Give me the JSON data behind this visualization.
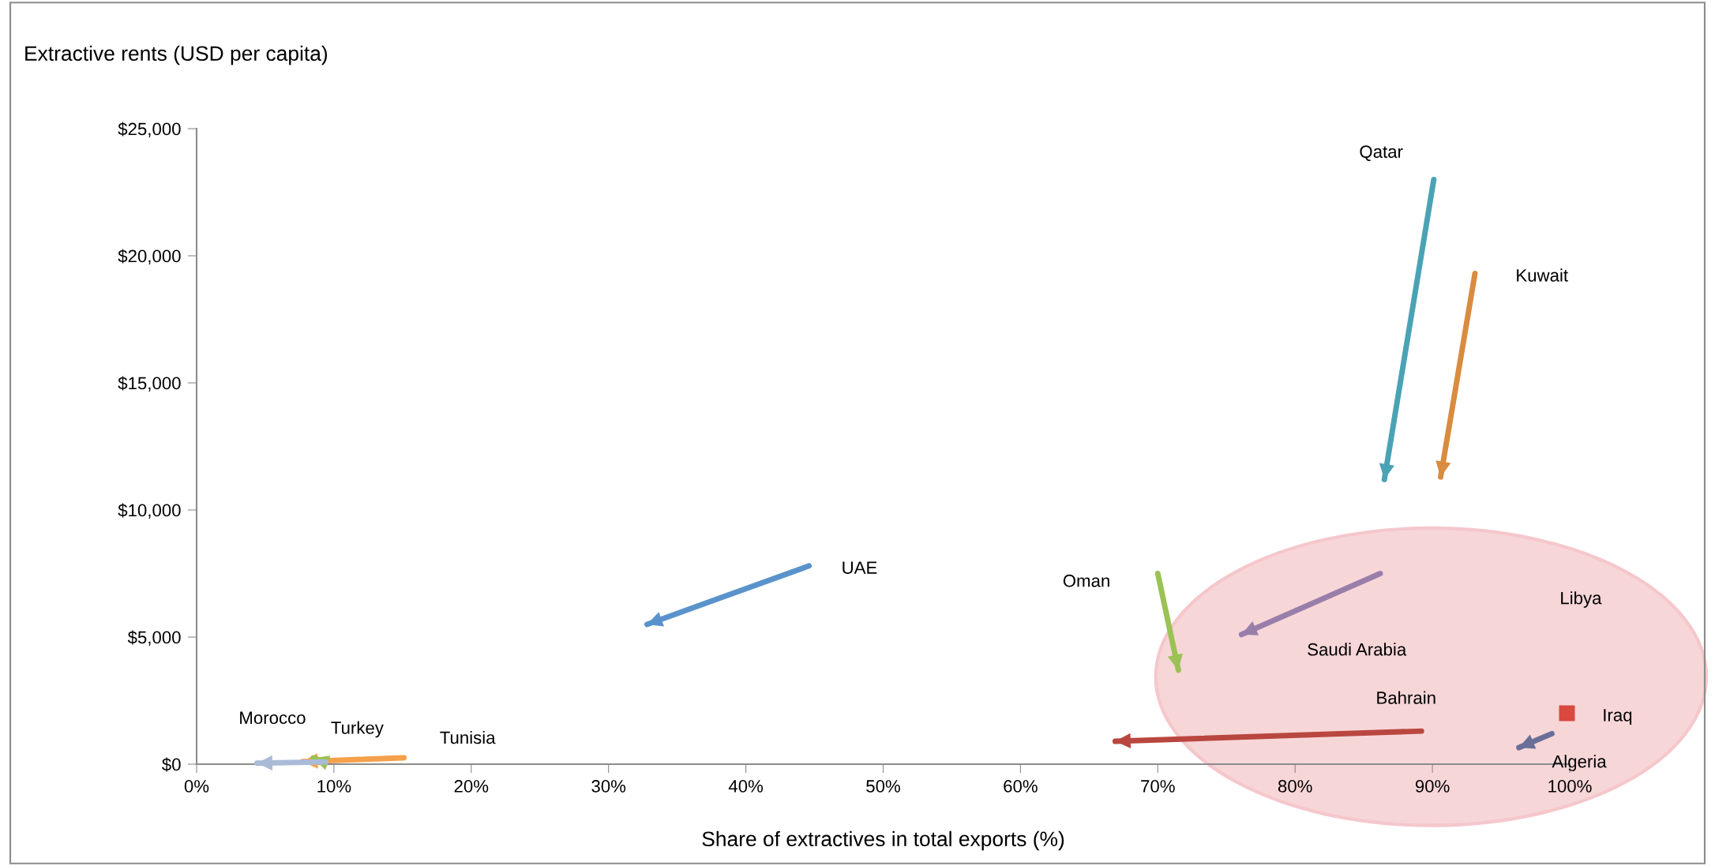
{
  "chart_data": {
    "type": "line",
    "xlabel": "Share of extractives in total exports (%)",
    "ylabel": "Extractive rents (USD per capita)",
    "xlim": [
      0,
      100
    ],
    "xticks": [
      {
        "value": 0,
        "label": "0%"
      },
      {
        "value": 10,
        "label": "10%"
      },
      {
        "value": 20,
        "label": "20%"
      },
      {
        "value": 30,
        "label": "30%"
      },
      {
        "value": 40,
        "label": "40%"
      },
      {
        "value": 50,
        "label": "50%"
      },
      {
        "value": 60,
        "label": "60%"
      },
      {
        "value": 70,
        "label": "70%"
      },
      {
        "value": 80,
        "label": "80%"
      },
      {
        "value": 90,
        "label": "90%"
      },
      {
        "value": 100,
        "label": "100%"
      }
    ],
    "ylim": [
      0,
      25000
    ],
    "yticks": [
      {
        "value": 0,
        "label": "$0"
      },
      {
        "value": 5000,
        "label": "$5,000"
      },
      {
        "value": 10000,
        "label": "$10,000"
      },
      {
        "value": 15000,
        "label": "$15,000"
      },
      {
        "value": 20000,
        "label": "$20,000"
      },
      {
        "value": 25000,
        "label": "$25,000"
      }
    ],
    "grid": false,
    "legend": false,
    "series": [
      {
        "name": "Qatar",
        "color": "#4aa3b5",
        "x": [
          90.1,
          86.5
        ],
        "values": [
          23000,
          11200
        ]
      },
      {
        "name": "Kuwait",
        "color": "#d98b3f",
        "x": [
          93.1,
          90.6
        ],
        "values": [
          19300,
          11300
        ]
      },
      {
        "name": "UAE",
        "color": "#5a93cc",
        "x": [
          44.6,
          32.8
        ],
        "values": [
          7800,
          5500
        ]
      },
      {
        "name": "Oman",
        "color": "#9bc254",
        "x": [
          70.0,
          71.5
        ],
        "values": [
          7500,
          3700
        ]
      },
      {
        "name": "Saudi Arabia",
        "color": "#9a7eaa",
        "x": [
          86.2,
          76.1
        ],
        "values": [
          7500,
          5100
        ]
      },
      {
        "name": "Bahrain",
        "color": "#b9473f",
        "x": [
          89.2,
          66.9
        ],
        "values": [
          1300,
          900
        ]
      },
      {
        "name": "Algeria",
        "color": "#6a6f99",
        "x": [
          98.7,
          96.3
        ],
        "values": [
          1200,
          650
        ]
      },
      {
        "name": "Iraq",
        "color": "#d9493e",
        "type": "scatter",
        "marker": "square",
        "x": [
          99.8
        ],
        "values": [
          2000
        ]
      },
      {
        "name": "Tunisia",
        "color": "#f5a04a",
        "x": [
          15.1,
          7.7
        ],
        "values": [
          250,
          100
        ]
      },
      {
        "name": "Turkey",
        "color": "#9bc254",
        "x": [
          9.3,
          8.5
        ],
        "values": [
          100,
          250
        ]
      },
      {
        "name": "Morocco",
        "color": "#aabbd8",
        "x": [
          9.4,
          4.4
        ],
        "values": [
          90,
          40
        ]
      }
    ],
    "annotations": [
      "Libya"
    ]
  }
}
